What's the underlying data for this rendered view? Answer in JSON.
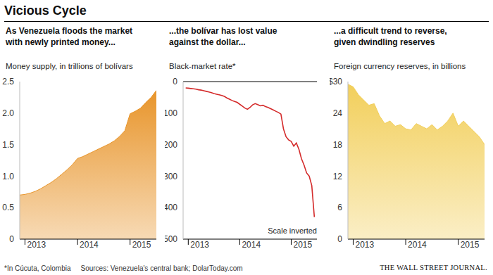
{
  "title": "Vicious Cycle",
  "footnote": "*In Cúcuta, Colombia",
  "source": "Sources: Venezuela's central bank; DolarToday.com",
  "credit": "THE WALL STREET JOURNAL.",
  "chart_data": [
    {
      "type": "area",
      "title": "As Venezuela floods the market\nwith newly printed money...",
      "subtitle": "Money supply, in trillions of bolívars",
      "color": "#e8952b",
      "x": [
        2012.9,
        2013,
        2013.1,
        2013.2,
        2013.3,
        2013.4,
        2013.5,
        2013.6,
        2013.7,
        2013.8,
        2013.9,
        2014,
        2014.1,
        2014.2,
        2014.3,
        2014.4,
        2014.5,
        2014.6,
        2014.7,
        2014.8,
        2014.9,
        2015,
        2015.1,
        2015.2,
        2015.3,
        2015.4,
        2015.5
      ],
      "values": [
        0.7,
        0.71,
        0.73,
        0.76,
        0.8,
        0.85,
        0.9,
        0.96,
        1.03,
        1.1,
        1.18,
        1.28,
        1.31,
        1.35,
        1.39,
        1.43,
        1.47,
        1.51,
        1.56,
        1.63,
        1.72,
        1.99,
        2.03,
        2.08,
        2.17,
        2.25,
        2.36
      ],
      "xlim": [
        2012.9,
        2015.5
      ],
      "xticks": [
        2013,
        2014,
        2015
      ],
      "ylim": [
        0,
        2.5
      ],
      "yticks": [
        0,
        0.5,
        {
          "value": 1,
          "label": "1.0"
        },
        1.5,
        {
          "value": 2,
          "label": "2.0"
        },
        2.5
      ],
      "grid": false
    },
    {
      "type": "line",
      "title": "...the bolívar has lost value\nagainst the dollar...",
      "subtitle": "Black-market rate*",
      "annotations": [
        "Scale inverted"
      ],
      "color": "#d42b2b",
      "x": [
        2012.95,
        2013,
        2013.05,
        2013.1,
        2013.15,
        2013.2,
        2013.25,
        2013.3,
        2013.35,
        2013.4,
        2013.45,
        2013.5,
        2013.55,
        2013.6,
        2013.65,
        2013.7,
        2013.75,
        2013.8,
        2013.85,
        2013.9,
        2013.95,
        2014,
        2014.05,
        2014.1,
        2014.15,
        2014.2,
        2014.25,
        2014.3,
        2014.35,
        2014.4,
        2014.45,
        2014.5,
        2014.55,
        2014.6,
        2014.65,
        2014.7,
        2014.75,
        2014.8,
        2014.85,
        2014.9,
        2014.95,
        2015,
        2015.05,
        2015.1,
        2015.15,
        2015.2,
        2015.25,
        2015.3,
        2015.35,
        2015.4,
        2015.45
      ],
      "values": [
        20,
        21,
        22,
        23,
        24,
        26,
        27,
        29,
        31,
        33,
        35,
        38,
        40,
        42,
        44,
        47,
        52,
        56,
        60,
        63,
        66,
        72,
        78,
        84,
        88,
        82,
        74,
        70,
        73,
        77,
        75,
        79,
        82,
        86,
        90,
        94,
        98,
        103,
        150,
        175,
        185,
        190,
        205,
        195,
        215,
        245,
        265,
        290,
        300,
        330,
        430
      ],
      "xlim": [
        2012.9,
        2015.5
      ],
      "xticks": [
        2013,
        2014,
        2015
      ],
      "ylim": [
        500,
        0
      ],
      "yticks": [
        0,
        100,
        200,
        300,
        400,
        500
      ],
      "grid": false
    },
    {
      "type": "area",
      "title": "...a difficult trend to reverse,\ngiven dwindling reserves",
      "subtitle": "Foreign currency reserves, in billions",
      "color": "#f2cf5b",
      "x": [
        2012.9,
        2013,
        2013.1,
        2013.2,
        2013.3,
        2013.4,
        2013.5,
        2013.6,
        2013.7,
        2013.8,
        2013.9,
        2014,
        2014.1,
        2014.2,
        2014.3,
        2014.4,
        2014.5,
        2014.6,
        2014.7,
        2014.8,
        2014.9,
        2015,
        2015.1,
        2015.2,
        2015.3,
        2015.4,
        2015.5
      ],
      "values": [
        29.5,
        29,
        27.5,
        26.5,
        25.5,
        25.8,
        23.5,
        22,
        22.5,
        21.5,
        21.8,
        21,
        20.8,
        22,
        21.5,
        21,
        21.8,
        20.8,
        21.5,
        22.5,
        24,
        21.5,
        22.5,
        21.5,
        20.5,
        19.5,
        18
      ],
      "xlim": [
        2012.9,
        2015.5
      ],
      "xticks": [
        2013,
        2014,
        2015
      ],
      "ylim": [
        0,
        30
      ],
      "yticks": [
        0,
        6,
        12,
        18,
        24,
        {
          "value": 30,
          "label": "$30"
        }
      ],
      "grid": false
    }
  ]
}
